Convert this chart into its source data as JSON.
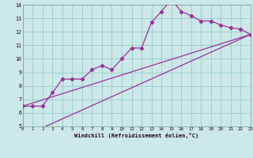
{
  "x_min": 0,
  "x_max": 23,
  "y_min": 5,
  "y_max": 14,
  "bg_color": "#cce8e8",
  "grid_color": "#99cccc",
  "line_color": "#993399",
  "xlabel": "Windchill (Refroidissement éolien,°C)",
  "line1_x": [
    0,
    1,
    2,
    3,
    4,
    5,
    6,
    7,
    8,
    9,
    10,
    11,
    12,
    13,
    14,
    15,
    16,
    17,
    18,
    19,
    20,
    21,
    22,
    23
  ],
  "line1_y": [
    6.5,
    6.5,
    6.5,
    7.5,
    8.5,
    8.5,
    8.5,
    9.2,
    9.5,
    9.2,
    10.0,
    10.8,
    10.8,
    12.7,
    13.5,
    14.4,
    13.5,
    13.2,
    12.8,
    12.8,
    12.5,
    12.3,
    12.2,
    11.8
  ],
  "line2_x": [
    0,
    23
  ],
  "line2_y": [
    6.5,
    11.8
  ],
  "line3_x": [
    2,
    23
  ],
  "line3_y": [
    4.9,
    11.8
  ]
}
